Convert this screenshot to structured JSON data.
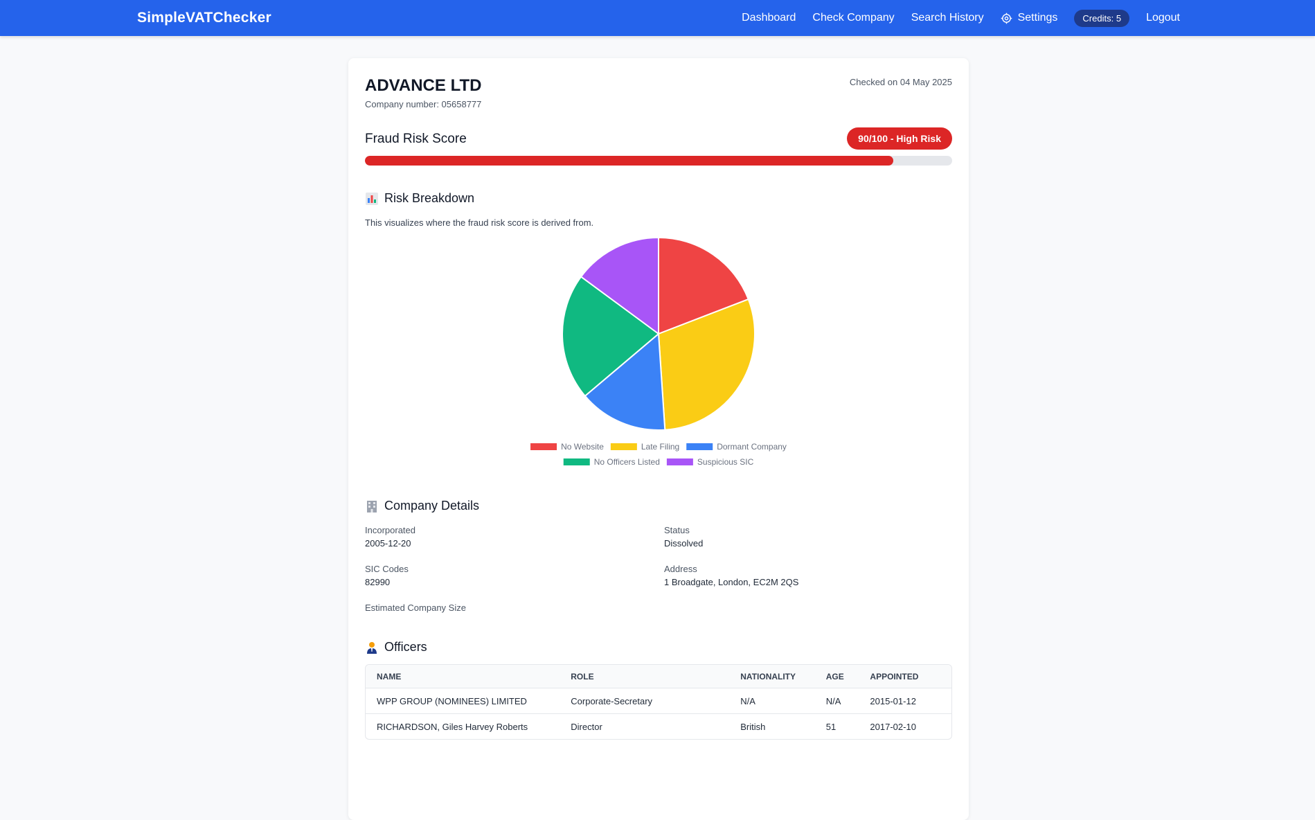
{
  "navbar": {
    "brand": "SimpleVATChecker",
    "links": [
      {
        "label": "Dashboard"
      },
      {
        "label": "Check Company"
      },
      {
        "label": "Search History"
      },
      {
        "label": "Settings",
        "icon": "gear-icon"
      }
    ],
    "credits": "Credits: 5",
    "logout": "Logout",
    "color": "#2563eb"
  },
  "company": {
    "name": "ADVANCE LTD",
    "number": "Company number: 05658777",
    "checked_on": "Checked on 04 May 2025"
  },
  "fraud": {
    "title": "Fraud Risk Score",
    "badge": "90/100 - High Risk",
    "score": 90,
    "max": 100,
    "color": "#dc2626"
  },
  "breakdown": {
    "title": "Risk Breakdown",
    "icon": "bar-chart-icon",
    "description": "This visualizes where the fraud risk score is derived from."
  },
  "chart_data": {
    "type": "pie",
    "labels": [
      "No Website",
      "Late Filing",
      "Dormant Company",
      "No Officers Listed",
      "Suspicious SIC"
    ],
    "values": [
      18,
      28,
      14,
      20,
      14
    ],
    "colors": [
      "#ef4444",
      "#facc15",
      "#3b82f6",
      "#10b981",
      "#a855f7"
    ],
    "legend": "bottom"
  },
  "details": {
    "title": "Company Details",
    "icon": "building-icon",
    "incorporated_label": "Incorporated",
    "incorporated_value": "2005-12-20",
    "status_label": "Status",
    "status_value": "Dissolved",
    "sic_label": "SIC Codes",
    "sic_value": "82990",
    "address_label": "Address",
    "address_value": "1 Broadgate, London, EC2M 2QS",
    "size_label": "Estimated Company Size"
  },
  "officers": {
    "title": "Officers",
    "icon": "person-icon",
    "columns": [
      "NAME",
      "ROLE",
      "NATIONALITY",
      "AGE",
      "APPOINTED"
    ],
    "rows": [
      [
        "WPP GROUP (NOMINEES) LIMITED",
        "Corporate-Secretary",
        "N/A",
        "N/A",
        "2015-01-12"
      ],
      [
        "RICHARDSON, Giles Harvey Roberts",
        "Director",
        "British",
        "51",
        "2017-02-10"
      ]
    ]
  }
}
